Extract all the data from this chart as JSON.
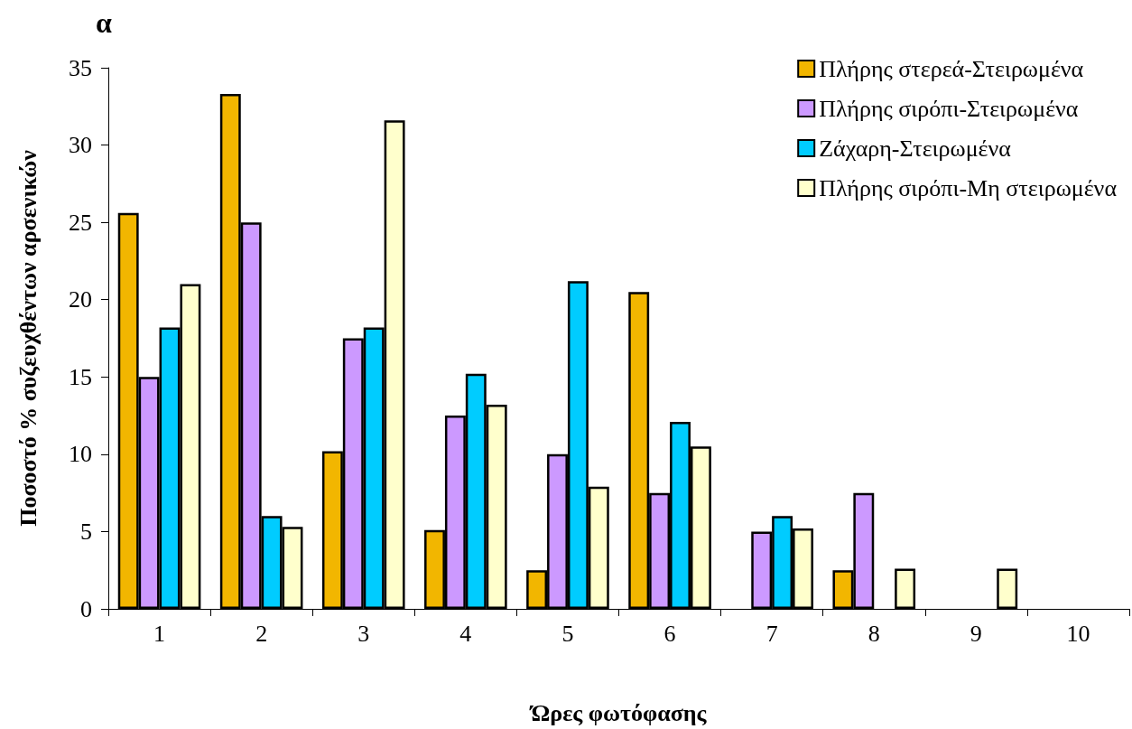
{
  "chart_data": {
    "type": "bar",
    "title": "α",
    "xlabel": "Ώρες φωτόφασης",
    "ylabel": "Ποσοστό % συζευχθέντων αρσενικών",
    "categories": [
      "1",
      "2",
      "3",
      "4",
      "5",
      "6",
      "7",
      "8",
      "9",
      "10"
    ],
    "series": [
      {
        "name": "Πλήρης στερεά-Στειρωμένα",
        "color": "#f2b600",
        "values": [
          25.6,
          33.3,
          10.2,
          5.1,
          2.5,
          20.5,
          null,
          2.5,
          null,
          null
        ]
      },
      {
        "name": "Πλήρης σιρόπι-Στειρωμένα",
        "color": "#cc99ff",
        "values": [
          15.0,
          25.0,
          17.5,
          12.5,
          10.0,
          7.5,
          5.0,
          7.5,
          null,
          null
        ]
      },
      {
        "name": "Ζάχαρη-Στειρωμένα",
        "color": "#00ccff",
        "values": [
          18.2,
          6.0,
          18.2,
          15.2,
          21.2,
          12.1,
          6.0,
          null,
          null,
          null
        ]
      },
      {
        "name": "Πλήρης σιρόπι-Μη στειρωμένα",
        "color": "#ffffcc",
        "values": [
          21.0,
          5.3,
          31.6,
          13.2,
          7.9,
          10.5,
          5.2,
          2.6,
          2.6,
          null
        ]
      }
    ],
    "ylim": [
      0,
      35
    ],
    "yticks": [
      0,
      5,
      10,
      15,
      20,
      25,
      30,
      35
    ],
    "grid": false,
    "legend": "top right"
  }
}
